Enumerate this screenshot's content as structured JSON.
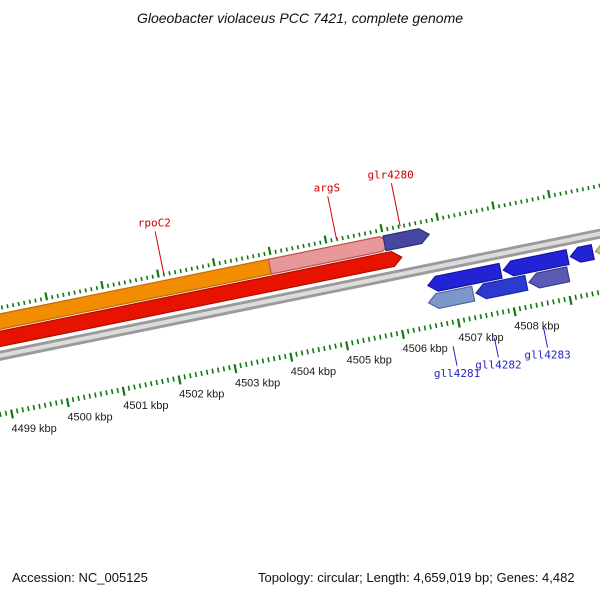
{
  "title": "Gloeobacter violaceus PCC 7421, complete genome",
  "status_bar": {
    "accession": "Accession: NC_005125",
    "summary": "Topology: circular; Length: 4,659,019 bp; Genes: 4,482"
  },
  "diagram": {
    "backbone": {
      "edge_color": "#9B9B9B",
      "center_color": "#DCDCDC"
    },
    "ruler": {
      "start_kbp": 4498.6,
      "end_kbp": 4510.6,
      "minor_step_kbp": 0.1,
      "major_step_kbp": 1.0,
      "tick_color": "#117A11",
      "label_color": "#1a1a1a",
      "labels": [
        {
          "kbp": 4499,
          "text": "4499 kbp"
        },
        {
          "kbp": 4500,
          "text": "4500 kbp"
        },
        {
          "kbp": 4501,
          "text": "4501 kbp"
        },
        {
          "kbp": 4502,
          "text": "4502 kbp"
        },
        {
          "kbp": 4503,
          "text": "4503 kbp"
        },
        {
          "kbp": 4504,
          "text": "4504 kbp"
        },
        {
          "kbp": 4505,
          "text": "4505 kbp"
        },
        {
          "kbp": 4506,
          "text": "4506 kbp"
        },
        {
          "kbp": 4507,
          "text": "4507 kbp"
        },
        {
          "kbp": 4508,
          "text": "4508 kbp"
        }
      ]
    },
    "genes": [
      {
        "id": "rpoC2",
        "label": "rpoC2",
        "label_kbp": 4502.1,
        "label_color": "#CC0000",
        "start_kbp": 4498.2,
        "end_kbp": 4504.15,
        "strand": "forward",
        "lane": "F2",
        "fill": "#F28C00",
        "stroke": "#C76A00"
      },
      {
        "id": "red-gene",
        "start_kbp": 4498.2,
        "end_kbp": 4506.25,
        "strand": "forward",
        "lane": "F1",
        "fill": "#E81200",
        "stroke": "#B00E00"
      },
      {
        "id": "argS",
        "label": "argS",
        "label_kbp": 4505.19,
        "label_color": "#CC0000",
        "start_kbp": 4503.95,
        "end_kbp": 4506.1,
        "strand": "forward",
        "lane": "F2",
        "fill": "#E89898",
        "stroke": "#C05050"
      },
      {
        "id": "glr4280",
        "label": "glr4280",
        "label_kbp": 4506.33,
        "label_color": "#CC0000",
        "start_kbp": 4506.0,
        "end_kbp": 4506.8,
        "strand": "forward",
        "lane": "F2",
        "fill": "#4647A0",
        "stroke": "#2F2F73"
      },
      {
        "id": "rev-blue-1",
        "start_kbp": 4506.6,
        "end_kbp": 4507.9,
        "strand": "reverse",
        "lane": "R1",
        "fill": "#2323D6",
        "stroke": "#1414A8"
      },
      {
        "id": "rev-blue-2",
        "start_kbp": 4507.95,
        "end_kbp": 4509.1,
        "strand": "reverse",
        "lane": "R1",
        "fill": "#2323D6",
        "stroke": "#1414A8"
      },
      {
        "id": "rev-blue-3",
        "start_kbp": 4509.15,
        "end_kbp": 4509.55,
        "strand": "reverse",
        "lane": "R1",
        "fill": "#2323D6",
        "stroke": "#1414A8"
      },
      {
        "id": "rev-khaki",
        "start_kbp": 4509.6,
        "end_kbp": 4510.7,
        "strand": "reverse",
        "lane": "R1",
        "fill": "#C9C979",
        "stroke": "#99994D"
      },
      {
        "id": "gll4281",
        "label": "gll4281",
        "label_kbp": 4506.82,
        "label_color": "#2222CC",
        "start_kbp": 4506.55,
        "end_kbp": 4507.35,
        "strand": "reverse",
        "lane": "R2",
        "fill": "#7D96CC",
        "stroke": "#52699C"
      },
      {
        "id": "gll4282",
        "label": "gll4282",
        "label_kbp": 4507.56,
        "label_color": "#2222CC",
        "start_kbp": 4507.4,
        "end_kbp": 4508.3,
        "strand": "reverse",
        "lane": "R2",
        "fill": "#2B3BD0",
        "stroke": "#1B2AA0"
      },
      {
        "id": "gll4283",
        "label": "gll4283",
        "label_kbp": 4508.44,
        "label_color": "#2222CC",
        "start_kbp": 4508.35,
        "end_kbp": 4509.05,
        "strand": "reverse",
        "lane": "R2",
        "fill": "#5A5AB4",
        "stroke": "#3C3C8C"
      }
    ]
  }
}
